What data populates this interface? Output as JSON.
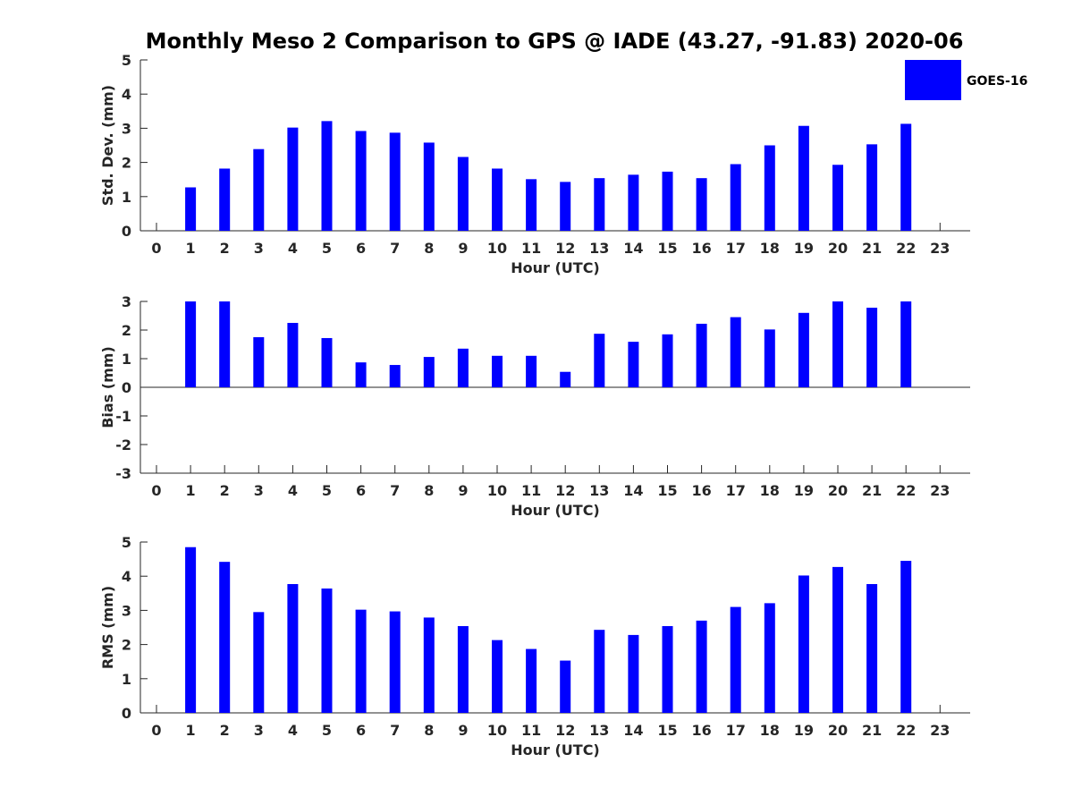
{
  "title": "Monthly Meso 2 Comparison to GPS @ IADE (43.27, -91.83) 2020-06",
  "legend": {
    "label": "GOES-16",
    "color": "#0000ff",
    "placement": "top-right"
  },
  "chart_data": [
    {
      "type": "bar",
      "title": "Monthly Meso 2 Comparison to GPS @ IADE (43.27, -91.83) 2020-06",
      "xlabel": "Hour (UTC)",
      "ylabel": "Std. Dev. (mm)",
      "xlim": [
        0,
        23
      ],
      "ylim": [
        0,
        5
      ],
      "yticks": [
        "0",
        "1",
        "2",
        "3",
        "4",
        "5"
      ],
      "categories": [
        "0",
        "1",
        "2",
        "3",
        "4",
        "5",
        "6",
        "7",
        "8",
        "9",
        "10",
        "11",
        "12",
        "13",
        "14",
        "15",
        "16",
        "17",
        "18",
        "19",
        "20",
        "21",
        "22",
        "23"
      ],
      "series": [
        {
          "name": "GOES-16",
          "values": [
            null,
            1.27,
            1.82,
            2.39,
            3.02,
            3.21,
            2.92,
            2.87,
            2.58,
            2.16,
            1.82,
            1.51,
            1.43,
            1.54,
            1.64,
            1.73,
            1.54,
            1.95,
            2.5,
            3.07,
            1.93,
            2.53,
            3.13,
            null
          ]
        }
      ]
    },
    {
      "type": "bar",
      "xlabel": "Hour (UTC)",
      "ylabel": "Bias (mm)",
      "xlim": [
        0,
        23
      ],
      "ylim": [
        -3,
        3
      ],
      "yticks": [
        "-3",
        "-2",
        "-1",
        "0",
        "1",
        "2",
        "3"
      ],
      "zero_line": true,
      "categories": [
        "0",
        "1",
        "2",
        "3",
        "4",
        "5",
        "6",
        "7",
        "8",
        "9",
        "10",
        "11",
        "12",
        "13",
        "14",
        "15",
        "16",
        "17",
        "18",
        "19",
        "20",
        "21",
        "22",
        "23"
      ],
      "series": [
        {
          "name": "GOES-16",
          "values": [
            null,
            3.0,
            3.0,
            1.75,
            2.25,
            1.72,
            0.87,
            0.78,
            1.06,
            1.35,
            1.1,
            1.1,
            0.54,
            1.87,
            1.59,
            1.85,
            2.22,
            2.45,
            2.02,
            2.6,
            3.0,
            2.78,
            3.0,
            null
          ]
        }
      ]
    },
    {
      "type": "bar",
      "xlabel": "Hour (UTC)",
      "ylabel": "RMS (mm)",
      "xlim": [
        0,
        23
      ],
      "ylim": [
        0,
        5
      ],
      "yticks": [
        "0",
        "1",
        "2",
        "3",
        "4",
        "5"
      ],
      "categories": [
        "0",
        "1",
        "2",
        "3",
        "4",
        "5",
        "6",
        "7",
        "8",
        "9",
        "10",
        "11",
        "12",
        "13",
        "14",
        "15",
        "16",
        "17",
        "18",
        "19",
        "20",
        "21",
        "22",
        "23"
      ],
      "series": [
        {
          "name": "GOES-16",
          "values": [
            null,
            4.85,
            4.42,
            2.95,
            3.77,
            3.64,
            3.02,
            2.97,
            2.79,
            2.54,
            2.13,
            1.87,
            1.53,
            2.43,
            2.28,
            2.54,
            2.7,
            3.1,
            3.21,
            4.02,
            4.27,
            3.77,
            4.45,
            null
          ]
        }
      ]
    }
  ]
}
